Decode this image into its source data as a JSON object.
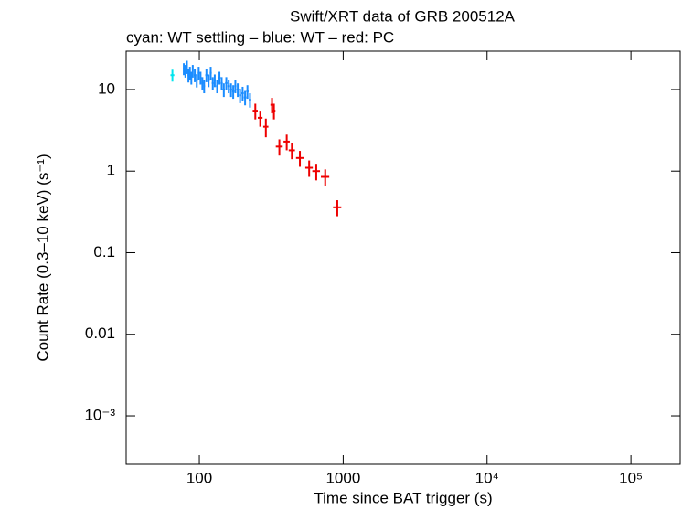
{
  "chart_data": {
    "type": "scatter",
    "title": "Swift/XRT data of GRB 200512A",
    "subtitle": "cyan: WT settling – blue: WT – red: PC",
    "x_label": "Time since BAT trigger (s)",
    "y_label": "Count Rate (0.3–10 keV) (s⁻¹)",
    "x_log": true,
    "y_log": true,
    "xlim": [
      31,
      220000
    ],
    "ylim": [
      0.000255,
      29.5
    ],
    "xticks": [
      100,
      1000,
      {
        "value": 10000,
        "label": "10⁴"
      },
      {
        "value": 100000,
        "label": "10⁵"
      }
    ],
    "yticks": [
      10,
      1,
      0.1,
      0.01,
      {
        "value": 0.001,
        "label": "10⁻³"
      }
    ],
    "series": [
      {
        "name": "WT settling",
        "color": "#00e5ee",
        "x": [
          65
        ],
        "xerr": [
          2
        ],
        "values": [
          15
        ],
        "yerr": [
          2.5
        ]
      },
      {
        "name": "WT",
        "color": "#1a8cff",
        "x": [
          78,
          80,
          82,
          84,
          86,
          88,
          90,
          93,
          96,
          99,
          102,
          105,
          108,
          112,
          116,
          120,
          124,
          128,
          133,
          138,
          143,
          148,
          154,
          160,
          166,
          172,
          178,
          185,
          192,
          200,
          208,
          216,
          225
        ],
        "xerr": [
          1,
          1,
          1,
          1,
          1,
          1,
          1,
          1.5,
          1.5,
          1.5,
          1.5,
          1.5,
          1.5,
          2,
          2,
          2,
          2,
          2,
          2.5,
          2.5,
          2.5,
          2.5,
          3,
          3,
          3,
          3,
          3,
          3.5,
          3.5,
          4,
          4,
          4,
          4.5
        ],
        "values": [
          18,
          17,
          19,
          15,
          16,
          14,
          17,
          15,
          13,
          16,
          14,
          12,
          11,
          15,
          13,
          16,
          12,
          13,
          11,
          14,
          12,
          10,
          12,
          11,
          10,
          9.5,
          11,
          10,
          8.5,
          9,
          8,
          9.5,
          7.5
        ],
        "yerr": [
          3,
          3,
          3.5,
          2.8,
          3,
          2.5,
          3,
          2.7,
          2.4,
          3,
          2.5,
          2.2,
          2,
          2.7,
          2.3,
          3,
          2.2,
          2.3,
          2,
          2.5,
          2.2,
          1.9,
          2.2,
          2,
          1.9,
          1.8,
          2,
          1.9,
          1.7,
          1.8,
          1.6,
          1.8,
          1.5
        ]
      },
      {
        "name": "PC",
        "color": "#ee0000",
        "x": [
          245,
          265,
          290,
          320,
          330,
          360,
          405,
          440,
          500,
          580,
          650,
          750,
          910
        ],
        "xerr": [
          10,
          10,
          12,
          8,
          8,
          20,
          20,
          22,
          30,
          35,
          40,
          50,
          60
        ],
        "values": [
          5.5,
          4.5,
          3.5,
          6.5,
          5.5,
          2.0,
          2.3,
          1.8,
          1.45,
          1.1,
          1.0,
          0.85,
          0.36
        ],
        "yerr": [
          1.2,
          1.0,
          0.9,
          1.4,
          1.2,
          0.45,
          0.5,
          0.4,
          0.32,
          0.25,
          0.23,
          0.2,
          0.08
        ]
      }
    ]
  }
}
